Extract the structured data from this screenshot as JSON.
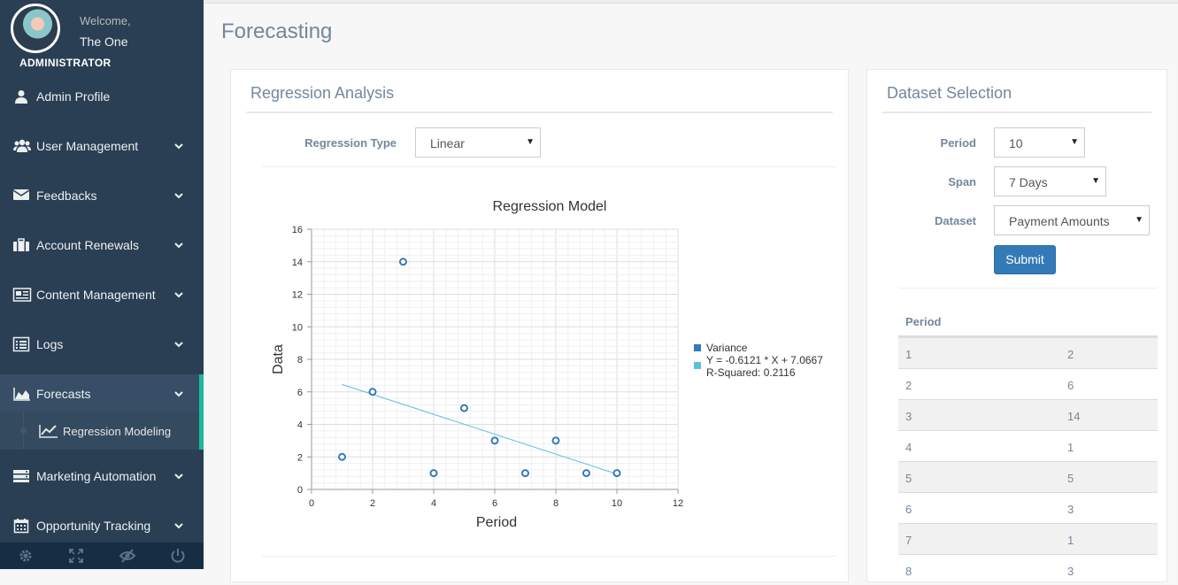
{
  "sidebar": {
    "welcome": "Welcome,",
    "username": "The One",
    "role": "ADMINISTRATOR",
    "items": [
      {
        "label": "Admin Profile",
        "icon": "user-icon"
      },
      {
        "label": "User Management",
        "icon": "users-icon"
      },
      {
        "label": "Feedbacks",
        "icon": "envelope-icon"
      },
      {
        "label": "Account Renewals",
        "icon": "briefcase-icon"
      },
      {
        "label": "Content Management",
        "icon": "newspaper-icon"
      },
      {
        "label": "Logs",
        "icon": "list-icon"
      },
      {
        "label": "Forecasts",
        "icon": "area-chart-icon"
      },
      {
        "label": "Marketing Automation",
        "icon": "server-icon"
      },
      {
        "label": "Opportunity Tracking",
        "icon": "calendar-icon"
      }
    ],
    "subitem": {
      "label": "Regression Modeling",
      "icon": "line-chart-icon"
    },
    "footer": [
      "settings-icon",
      "fullscreen-icon",
      "hide-icon",
      "power-icon"
    ]
  },
  "page": {
    "title": "Forecasting"
  },
  "regression": {
    "panel_title": "Regression Analysis",
    "type_label": "Regression Type",
    "type_value": "Linear"
  },
  "dataset": {
    "panel_title": "Dataset Selection",
    "period_label": "Period",
    "period_value": "10",
    "span_label": "Span",
    "span_value": "7 Days",
    "dataset_label": "Dataset",
    "dataset_value": "Payment Amounts",
    "submit_label": "Submit",
    "table_header": "Period",
    "rows": [
      [
        "1",
        "2"
      ],
      [
        "2",
        "6"
      ],
      [
        "3",
        "14"
      ],
      [
        "4",
        "1"
      ],
      [
        "5",
        "5"
      ],
      [
        "6",
        "3"
      ],
      [
        "7",
        "1"
      ],
      [
        "8",
        "3"
      ]
    ]
  },
  "chart_data": {
    "type": "scatter",
    "title": "Regression Model",
    "xlabel": "Period",
    "ylabel": "Data",
    "xlim": [
      0,
      12
    ],
    "ylim": [
      0,
      16
    ],
    "xticks": [
      0,
      2,
      4,
      6,
      8,
      10,
      12
    ],
    "yticks": [
      0,
      2,
      4,
      6,
      8,
      10,
      12,
      14,
      16
    ],
    "grid": true,
    "legend_position": "right",
    "series": [
      {
        "name": "Variance",
        "color": "#337ab7",
        "x": [
          1,
          2,
          3,
          4,
          5,
          6,
          7,
          8,
          9,
          10
        ],
        "y": [
          2,
          6,
          14,
          1,
          5,
          3,
          1,
          3,
          1,
          1
        ]
      },
      {
        "name": "Y = -0.6121 * X + 7.0667",
        "color": "#5bc0de",
        "x": [
          1,
          10
        ],
        "y": [
          6.4546,
          0.9457
        ]
      }
    ],
    "annotation": "R-Squared: 0.2116"
  }
}
